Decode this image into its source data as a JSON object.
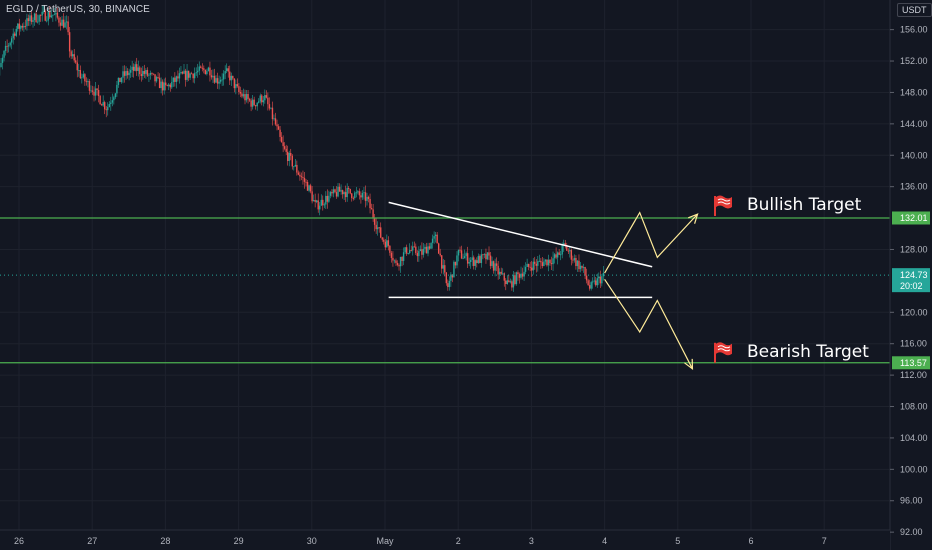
{
  "header": {
    "symbol": "EGLD / TetherUS, 30, BINANCE",
    "unit": "USDT"
  },
  "colors": {
    "up": "#26a69a",
    "down": "#ef5350",
    "level": "#4caf50",
    "pattern": "#ffffff",
    "projection": "#ffeb99",
    "flag": "#e53935"
  },
  "chart_data": {
    "type": "candlestick",
    "instrument": "EGLD / TetherUS, 30, BINANCE",
    "x_ticks": [
      "26",
      "27",
      "28",
      "29",
      "30",
      "May",
      "2",
      "3",
      "4",
      "5",
      "6",
      "7"
    ],
    "y_ticks": [
      156.0,
      152.0,
      148.0,
      144.0,
      140.0,
      136.0,
      128.0,
      120.0,
      116.0,
      112.0,
      108.0,
      104.0,
      100.0,
      96.0,
      92.0
    ],
    "ylim": [
      91,
      158.5
    ],
    "last_price": {
      "value": 124.73,
      "countdown": "20:02"
    },
    "levels": [
      {
        "label": "Bullish Target",
        "value": 132.01
      },
      {
        "label": "Bearish Target",
        "value": 113.57
      }
    ],
    "price_path": [
      [
        -0.35,
        148.0
      ],
      [
        -0.2,
        153.0
      ],
      [
        -0.05,
        156.0
      ],
      [
        0.2,
        157.5
      ],
      [
        0.45,
        158.0
      ],
      [
        0.65,
        156.5
      ],
      [
        0.7,
        153.0
      ],
      [
        0.85,
        150.0
      ],
      [
        1.0,
        148.5
      ],
      [
        1.2,
        146.0
      ],
      [
        1.4,
        150.0
      ],
      [
        1.6,
        151.0
      ],
      [
        1.8,
        150.0
      ],
      [
        2.0,
        148.5
      ],
      [
        2.2,
        150.0
      ],
      [
        2.4,
        150.5
      ],
      [
        2.6,
        151.0
      ],
      [
        2.7,
        149.5
      ],
      [
        2.85,
        150.5
      ],
      [
        3.0,
        148.0
      ],
      [
        3.2,
        146.5
      ],
      [
        3.35,
        147.5
      ],
      [
        3.5,
        144.0
      ],
      [
        3.6,
        141.0
      ],
      [
        3.7,
        139.5
      ],
      [
        3.8,
        138.0
      ],
      [
        3.95,
        136.0
      ],
      [
        4.05,
        133.5
      ],
      [
        4.2,
        134.5
      ],
      [
        4.4,
        135.5
      ],
      [
        4.6,
        135.0
      ],
      [
        4.75,
        134.5
      ],
      [
        4.85,
        132.0
      ],
      [
        4.95,
        129.5
      ],
      [
        5.05,
        128.5
      ],
      [
        5.15,
        126.0
      ],
      [
        5.3,
        128.0
      ],
      [
        5.5,
        127.5
      ],
      [
        5.7,
        129.5
      ],
      [
        5.85,
        123.0
      ],
      [
        6.0,
        127.5
      ],
      [
        6.2,
        126.5
      ],
      [
        6.4,
        127.0
      ],
      [
        6.55,
        125.0
      ],
      [
        6.7,
        123.5
      ],
      [
        6.85,
        125.0
      ],
      [
        7.0,
        126.0
      ],
      [
        7.2,
        126.5
      ],
      [
        7.35,
        127.0
      ],
      [
        7.45,
        128.5
      ],
      [
        7.6,
        126.5
      ],
      [
        7.7,
        125.5
      ],
      [
        7.8,
        123.0
      ],
      [
        7.9,
        124.0
      ],
      [
        8.0,
        124.7
      ]
    ],
    "annotations": {
      "triangle_upper": [
        [
          5.05,
          134.0
        ],
        [
          8.65,
          125.8
        ]
      ],
      "triangle_lower": [
        [
          5.05,
          121.9
        ],
        [
          8.65,
          121.9
        ]
      ],
      "bull_path": [
        [
          8.0,
          125.0
        ],
        [
          8.48,
          132.7
        ],
        [
          8.72,
          127.0
        ],
        [
          9.27,
          132.5
        ]
      ],
      "bear_path": [
        [
          8.0,
          124.2
        ],
        [
          8.48,
          117.5
        ],
        [
          8.72,
          121.5
        ],
        [
          9.2,
          112.8
        ]
      ]
    },
    "current_time_x": 8.0
  }
}
